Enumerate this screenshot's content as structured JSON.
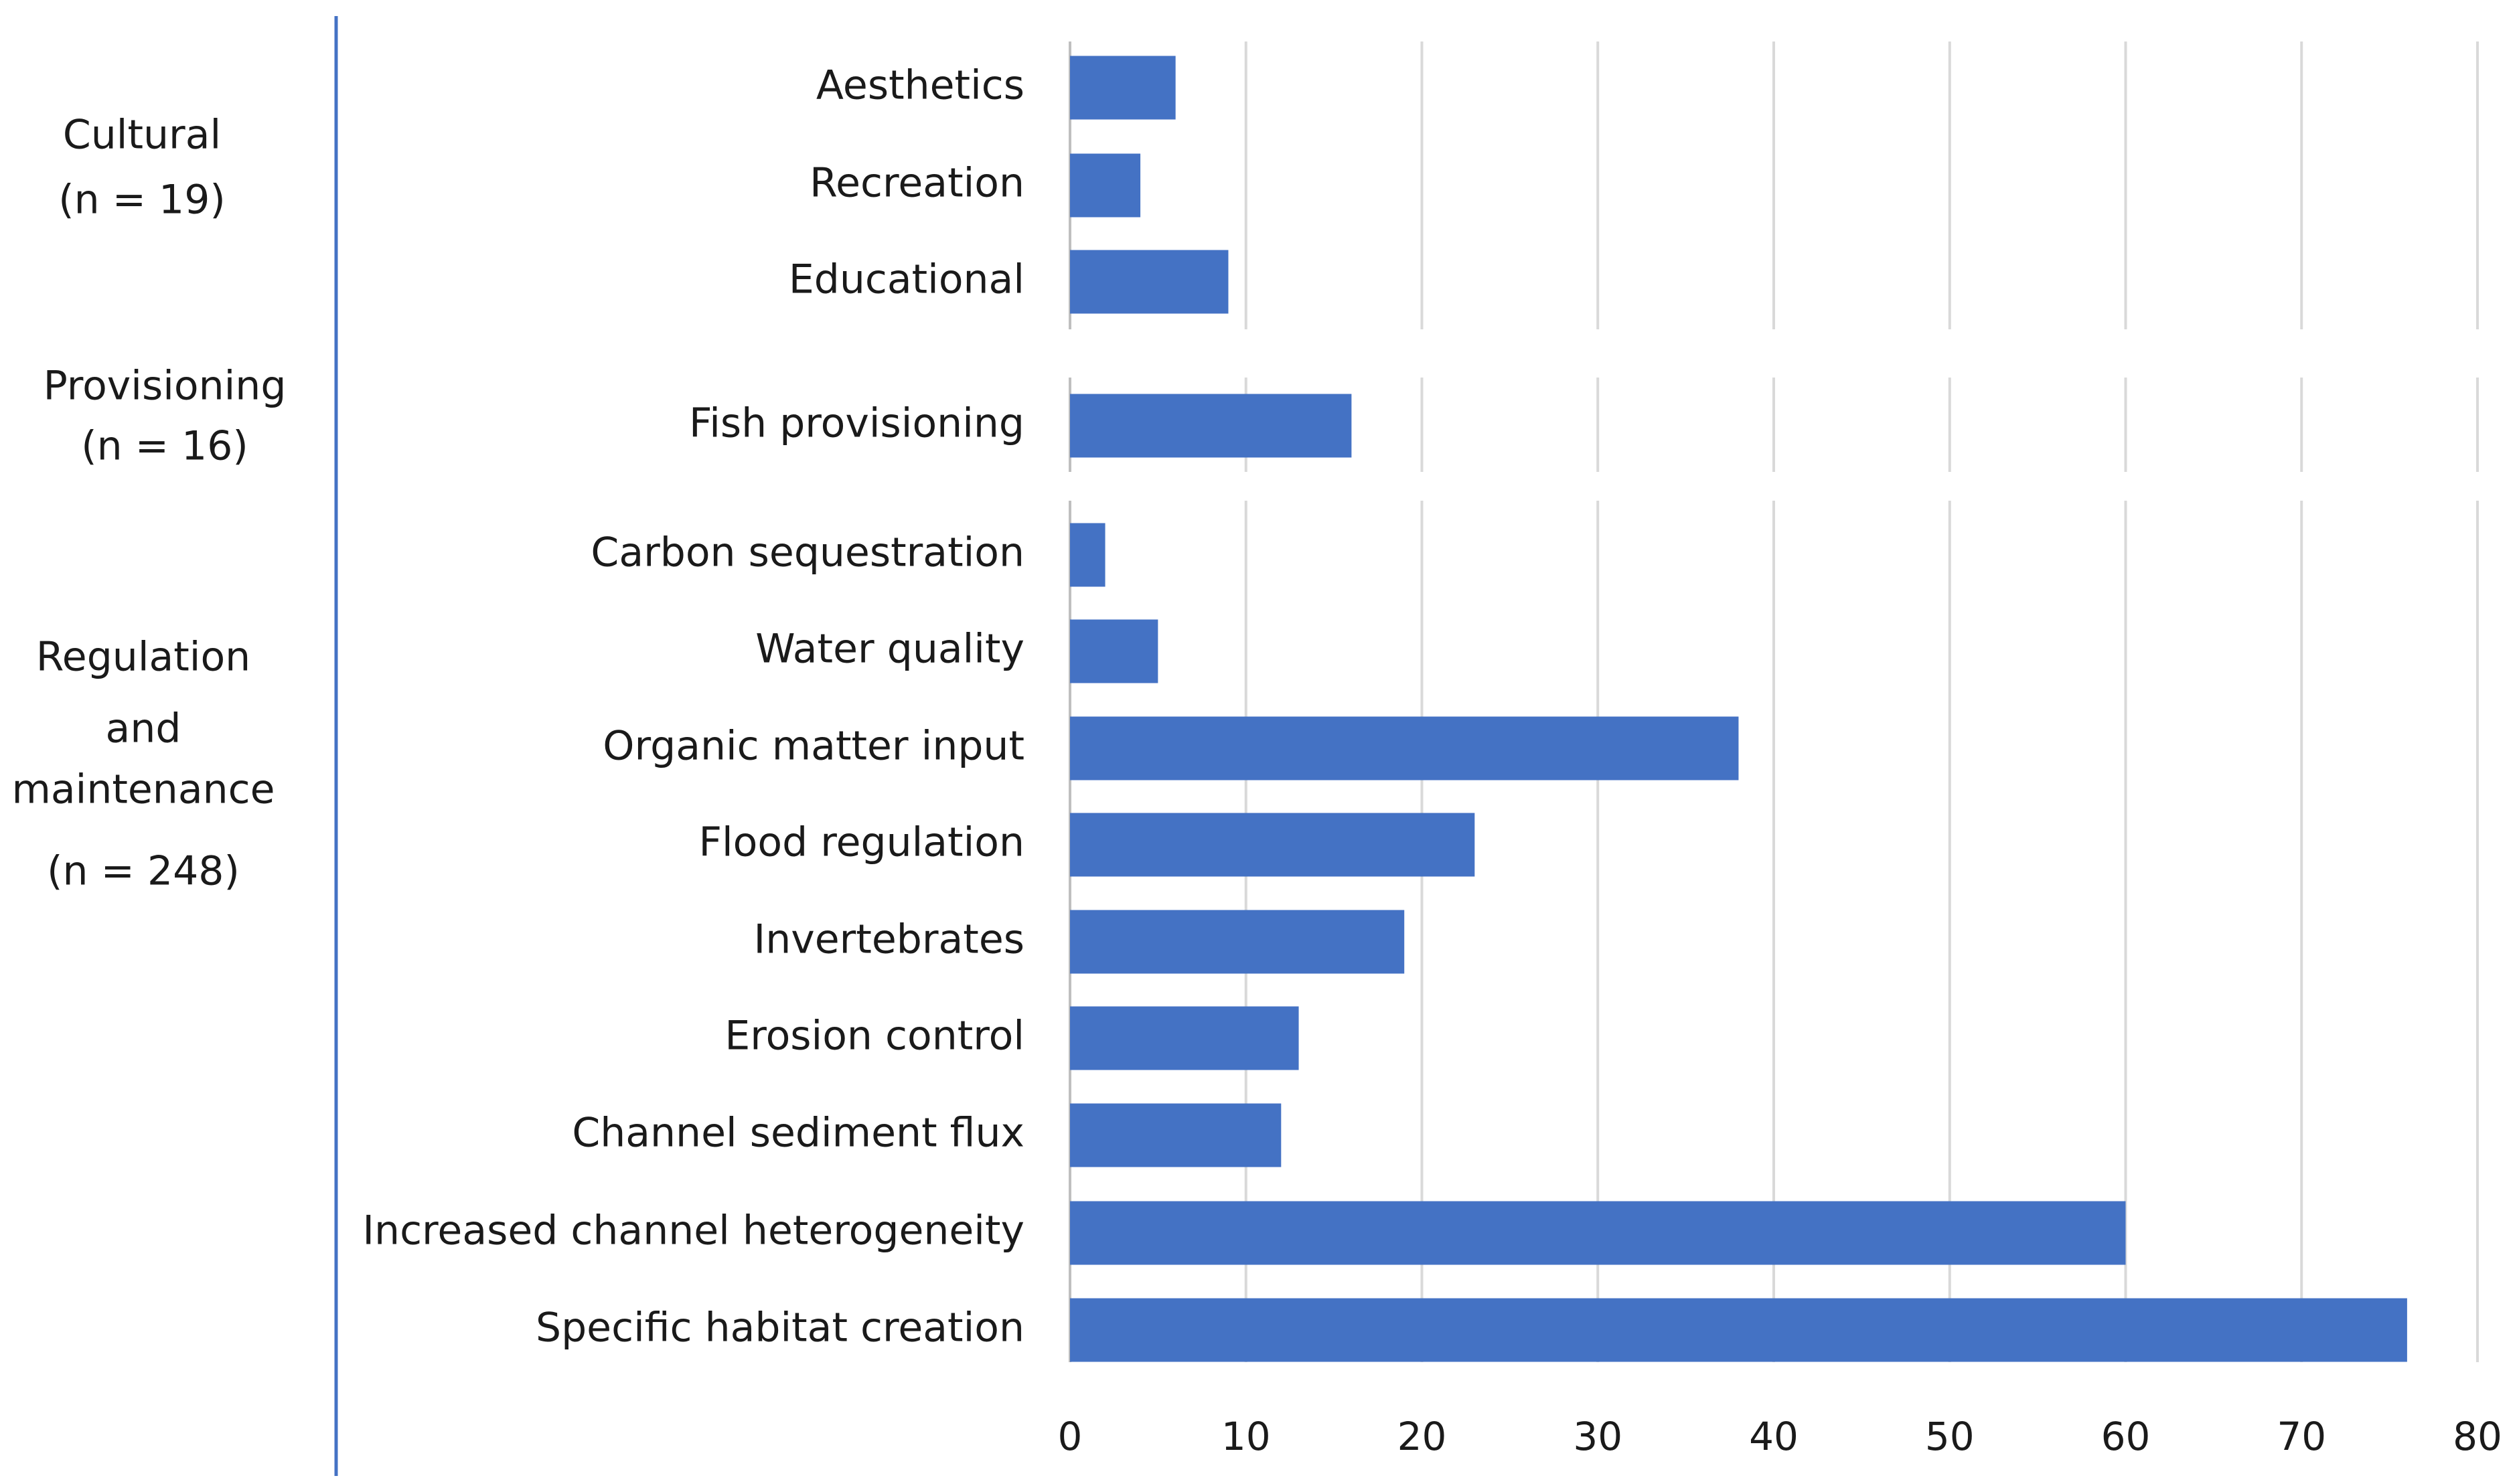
{
  "chart_data": {
    "type": "bar",
    "orientation": "horizontal",
    "xlim": [
      0,
      80
    ],
    "x_ticks": [
      "0",
      "10",
      "20",
      "30",
      "40",
      "50",
      "60",
      "70",
      "80"
    ],
    "grid": true,
    "bar_color": "#4472c4",
    "divider_color": "#4472c4",
    "groups": [
      {
        "lines": [
          "Cultural",
          "(n = 19)"
        ],
        "categories": [
          "Aesthetics",
          "Recreation",
          "Educational"
        ],
        "values": [
          6,
          4,
          9
        ]
      },
      {
        "lines": [
          "Provisioning",
          "(n = 16)"
        ],
        "categories": [
          "Fish provisioning"
        ],
        "values": [
          16
        ]
      },
      {
        "lines": [
          "Regulation",
          "and",
          "maintenance",
          "(n = 248)"
        ],
        "categories": [
          "Carbon sequestration",
          "Water quality",
          "Organic matter input",
          "Flood regulation",
          "Invertebrates",
          "Erosion control",
          "Channel sediment flux",
          "Increased channel heterogeneity",
          "Specific habitat creation"
        ],
        "values": [
          2,
          5,
          38,
          23,
          19,
          13,
          12,
          60,
          76
        ]
      }
    ]
  }
}
